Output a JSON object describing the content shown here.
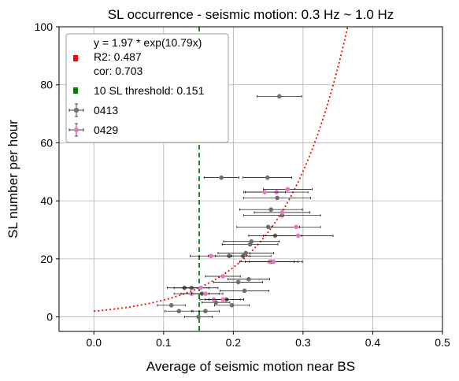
{
  "chart_data": {
    "type": "scatter",
    "title": "SL occurrence - seismic motion: 0.3 Hz ~ 1.0 Hz",
    "xlabel": "Average of seismic motion near BS",
    "ylabel": "SL number per hour",
    "xlim": [
      -0.05,
      0.5
    ],
    "ylim": [
      -5,
      100
    ],
    "xticks": [
      "0.0",
      "0.1",
      "0.2",
      "0.3",
      "0.4",
      "0.5"
    ],
    "xtick_values": [
      0.0,
      0.1,
      0.2,
      0.3,
      0.4,
      0.5
    ],
    "yticks": [
      "0",
      "20",
      "40",
      "60",
      "80",
      "100"
    ],
    "ytick_values": [
      0,
      20,
      40,
      60,
      80,
      100
    ],
    "grid": true,
    "legend_position": "top-left",
    "fit": {
      "label_lines": [
        "y = 1.97 * exp(10.79x)",
        "R2: 0.487",
        "cor: 0.703"
      ],
      "a": 1.97,
      "b": 10.79,
      "color": "#ff0000",
      "style": "dotted"
    },
    "threshold": {
      "label": "10 SL threshold: 0.151",
      "x": 0.151,
      "color": "#008000",
      "style": "dashed"
    },
    "series": [
      {
        "name": "0413",
        "color": "#6e6e6e",
        "points": [
          {
            "x": 0.266,
            "y": 76,
            "xerr": 0.032
          },
          {
            "x": 0.249,
            "y": 48,
            "xerr": 0.035
          },
          {
            "x": 0.183,
            "y": 48,
            "xerr": 0.025
          },
          {
            "x": 0.263,
            "y": 41,
            "xerr": 0.048
          },
          {
            "x": 0.254,
            "y": 37,
            "xerr": 0.045
          },
          {
            "x": 0.27,
            "y": 35,
            "xerr": 0.055
          },
          {
            "x": 0.25,
            "y": 31,
            "xerr": 0.045
          },
          {
            "x": 0.26,
            "y": 28,
            "xerr": 0.038
          },
          {
            "x": 0.226,
            "y": 26,
            "xerr": 0.04
          },
          {
            "x": 0.224,
            "y": 25,
            "xerr": 0.04
          },
          {
            "x": 0.218,
            "y": 22,
            "xerr": 0.04
          },
          {
            "x": 0.214,
            "y": 21,
            "xerr": 0.04
          },
          {
            "x": 0.194,
            "y": 21,
            "xerr": 0.03
          },
          {
            "x": 0.254,
            "y": 19,
            "xerr": 0.045
          },
          {
            "x": 0.222,
            "y": 13,
            "xerr": 0.03
          },
          {
            "x": 0.207,
            "y": 12,
            "xerr": 0.035
          },
          {
            "x": 0.216,
            "y": 9,
            "xerr": 0.035
          },
          {
            "x": 0.13,
            "y": 10,
            "xerr": 0.025
          },
          {
            "x": 0.14,
            "y": 10,
            "xerr": 0.025
          },
          {
            "x": 0.155,
            "y": 8,
            "xerr": 0.03
          },
          {
            "x": 0.19,
            "y": 6,
            "xerr": 0.025
          },
          {
            "x": 0.198,
            "y": 4,
            "xerr": 0.025
          },
          {
            "x": 0.175,
            "y": 5,
            "xerr": 0.02
          },
          {
            "x": 0.111,
            "y": 4,
            "xerr": 0.02
          },
          {
            "x": 0.122,
            "y": 2,
            "xerr": 0.02
          },
          {
            "x": 0.16,
            "y": 2,
            "xerr": 0.02
          },
          {
            "x": 0.15,
            "y": 0,
            "xerr": 0.02
          }
        ]
      },
      {
        "name": "0429",
        "color": "#e377c2",
        "points": [
          {
            "x": 0.278,
            "y": 44,
            "xerr": 0.035
          },
          {
            "x": 0.262,
            "y": 43,
            "xerr": 0.045
          },
          {
            "x": 0.245,
            "y": 43,
            "xerr": 0.03
          },
          {
            "x": 0.27,
            "y": 36,
            "xerr": 0.04
          },
          {
            "x": 0.29,
            "y": 31,
            "xerr": 0.035
          },
          {
            "x": 0.293,
            "y": 28,
            "xerr": 0.05
          },
          {
            "x": 0.168,
            "y": 21,
            "xerr": 0.03
          },
          {
            "x": 0.252,
            "y": 19,
            "xerr": 0.035
          },
          {
            "x": 0.258,
            "y": 19,
            "xerr": 0.035
          },
          {
            "x": 0.185,
            "y": 14,
            "xerr": 0.025
          },
          {
            "x": 0.153,
            "y": 10,
            "xerr": 0.025
          },
          {
            "x": 0.14,
            "y": 8,
            "xerr": 0.025
          },
          {
            "x": 0.16,
            "y": 8,
            "xerr": 0.02
          },
          {
            "x": 0.172,
            "y": 6,
            "xerr": 0.02
          },
          {
            "x": 0.185,
            "y": 6,
            "xerr": 0.025
          }
        ]
      }
    ]
  }
}
